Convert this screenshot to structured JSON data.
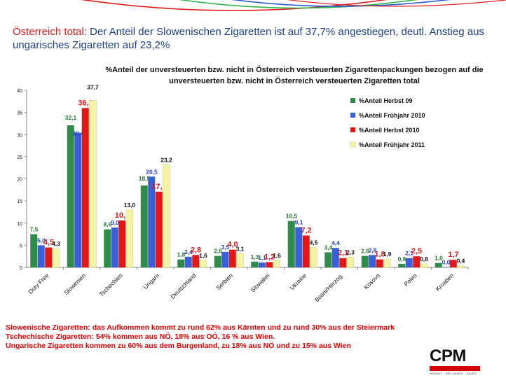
{
  "headline": {
    "lead": "Österreich total",
    "text": ": Der Anteil der Slowenischen Zigaretten  ist auf 37,7% angestiegen, deutl. Anstieg aus ungarisches Zigaretten auf 23,2%"
  },
  "notes": [
    "Slowenische Zigaretten: das Aufkommen kommt zu rund 62% aus Kärnten und zu rund 30% aus der Steiermark",
    "Tschechische Zigaretten: 54% kommen aus NÖ, 18% aus OÖ, 16 % aus Wien.",
    "Ungarische Zigaretten kommen zu 60% aus dem Burgenland, zu 18% aus NÖ  und zu 15% aus Wien"
  ],
  "logo": {
    "text": "CPM",
    "tagline": "INSIGHT · INFLUENCE · SALES",
    "color": "#d40000"
  },
  "chart_data": {
    "type": "bar",
    "title": "%Anteil der unversteuerten bzw. nicht in Österreich versteuerten Zigarettenpackungen bezogen auf die unversteuerten bzw. nicht in Österreich versteuerten Zigaretten total",
    "categories": [
      "Duty Free",
      "Slowenien",
      "Tschechien",
      "Ungarn",
      "Deutschland",
      "Serbien",
      "Slowakei",
      "Ukraine",
      "Bosni/Herzog.",
      "Kosovo",
      "Polen",
      "Kroatien"
    ],
    "series": [
      {
        "name": "%Anteil Herbst 09",
        "color": "#2e8b4a",
        "label_color": "#1f7a2e",
        "values": [
          7.5,
          32.1,
          8.6,
          18.5,
          1.8,
          2.6,
          1.3,
          10.5,
          3.4,
          2.6,
          0.8,
          1.0
        ],
        "labels": [
          "7,5",
          "32,1",
          "8,6",
          "18,5",
          "1,8",
          "2,6",
          "1,3",
          "10,5",
          "3,4",
          "2,6",
          "0,8",
          "1,0"
        ]
      },
      {
        "name": "%Anteil Frühjahr 2010",
        "color": "#3a5fd6",
        "label_color": "#2a3fd0",
        "values": [
          5.0,
          30.4,
          9.0,
          20.5,
          2.4,
          3.5,
          1.1,
          9.1,
          4.4,
          2.8,
          2.1,
          0.0
        ],
        "labels": [
          "5,0",
          "30,4",
          "9,0",
          "20,5",
          "2,4",
          "3,5",
          "1,1",
          "9,1",
          "4,4",
          "2,8",
          "2,1",
          "0,0"
        ]
      },
      {
        "name": "%Anteil Herbst 2010",
        "color": "#e01818",
        "label_color": "#e01818",
        "values": [
          4.5,
          36.0,
          10.6,
          17.1,
          2.8,
          4.0,
          1.2,
          7.2,
          2.1,
          1.8,
          2.5,
          1.7
        ],
        "labels": [
          "4,5",
          "36,0",
          "10,6",
          "17,1",
          "2,8",
          "4,0",
          "1,2",
          "7,2",
          "2,1",
          "1,8",
          "2,5",
          "1,7"
        ]
      },
      {
        "name": "%Anteil Frühjahr 2011",
        "color": "#f4f4a8",
        "label_color": "#111111",
        "values": [
          4.3,
          37.7,
          13.0,
          23.2,
          1.6,
          3.1,
          1.6,
          4.5,
          2.3,
          1.9,
          0.8,
          0.4
        ],
        "labels": [
          "4,3",
          "37,7",
          "13,0",
          "23,2",
          "1,6",
          "3,1",
          "1,6",
          "4,5",
          "2,3",
          "1,9",
          "0,8",
          "0,4"
        ]
      }
    ],
    "yticks": [
      "0",
      "5",
      "10",
      "15",
      "20",
      "25",
      "30",
      "35",
      "40"
    ],
    "ylim": [
      0,
      40
    ],
    "grid": false,
    "legend_position": "right"
  }
}
